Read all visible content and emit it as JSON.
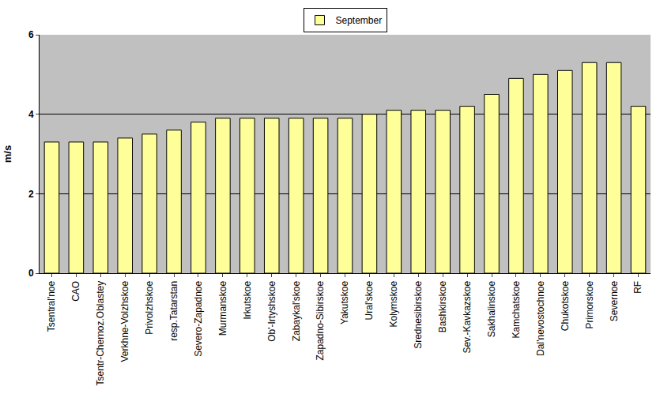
{
  "chart_data": {
    "type": "bar",
    "y_label": "m/s",
    "categories": [
      "Tsentral'noe",
      "CAO",
      "Tsentr-Chernoz.Oblastey",
      "Verkhne-Volzhskoe",
      "Privolzhskoe",
      "resp.Tatarstan",
      "Severo-Zapadnoe",
      "Murmanskoe",
      "Irkutskoe",
      "Ob'-Irtyshskoe",
      "Zabaykal'skoe",
      "Zapadno-Sibirskoe",
      "Yakutskoe",
      "Ural'skoe",
      "Kolymskoe",
      "Srednesibirskoe",
      "Bashkirskoe",
      "Sev.-Kavkazskoe",
      "Sakhalinskoe",
      "Kamchatskoe",
      "Dal'nevostochnoe",
      "Chukotskoe",
      "Primorskoe",
      "Severnoe",
      "RF"
    ],
    "series": [
      {
        "name": "September",
        "color": "#ffff99",
        "values": [
          3.3,
          3.3,
          3.3,
          3.4,
          3.5,
          3.6,
          3.8,
          3.9,
          3.9,
          3.9,
          3.9,
          3.9,
          3.9,
          4.0,
          4.1,
          4.1,
          4.1,
          4.2,
          4.5,
          4.9,
          5.0,
          5.1,
          5.3,
          5.3,
          4.2
        ]
      }
    ],
    "ylim": [
      0,
      6
    ],
    "yticks": [
      0,
      2,
      4,
      6
    ],
    "grid": true,
    "legend": "top"
  }
}
